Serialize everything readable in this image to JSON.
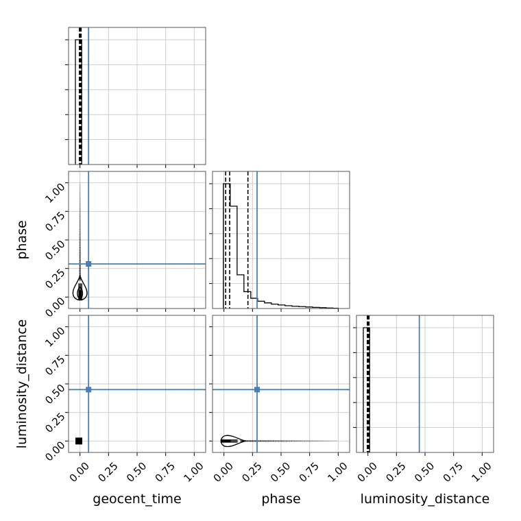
{
  "chart_data": {
    "type": "corner",
    "parameters": [
      "geocent_time",
      "phase",
      "luminosity_distance"
    ],
    "axis_range": [
      -0.1,
      1.1
    ],
    "ticks": [
      0.0,
      0.25,
      0.5,
      0.75,
      1.0
    ],
    "tick_labels": [
      "0.00",
      "0.25",
      "0.50",
      "0.75",
      "1.00"
    ],
    "truths": {
      "geocent_time": 0.075,
      "phase": 0.29,
      "luminosity_distance": 0.45
    },
    "grid": true,
    "diagonal": [
      {
        "parameter": "geocent_time",
        "hist_edges": [
          -0.04,
          0.015
        ],
        "hist_counts": [
          1.0
        ],
        "quantiles": [
          -0.005,
          0.003,
          0.01
        ]
      },
      {
        "parameter": "phase",
        "hist_edges": [
          -0.005,
          0.055,
          0.115,
          0.175,
          0.235,
          0.295,
          0.355,
          0.415,
          0.475,
          0.535,
          0.595,
          0.655,
          0.715,
          0.775,
          0.835,
          0.895,
          0.955,
          1.0
        ],
        "hist_counts": [
          1.0,
          0.82,
          0.27,
          0.135,
          0.082,
          0.058,
          0.045,
          0.035,
          0.028,
          0.022,
          0.018,
          0.015,
          0.012,
          0.009,
          0.007,
          0.004,
          0.002
        ],
        "quantiles": [
          0.015,
          0.05,
          0.21
        ]
      },
      {
        "parameter": "luminosity_distance",
        "hist_edges": [
          -0.04,
          0.015
        ],
        "hist_counts": [
          1.0
        ],
        "quantiles": [
          -0.005,
          0.003,
          0.01
        ]
      }
    ],
    "off_diagonal": [
      {
        "x": "geocent_time",
        "y": "phase",
        "row": 1,
        "col": 0
      },
      {
        "x": "geocent_time",
        "y": "luminosity_distance",
        "row": 2,
        "col": 0
      },
      {
        "x": "phase",
        "y": "luminosity_distance",
        "row": 2,
        "col": 1
      }
    ]
  }
}
